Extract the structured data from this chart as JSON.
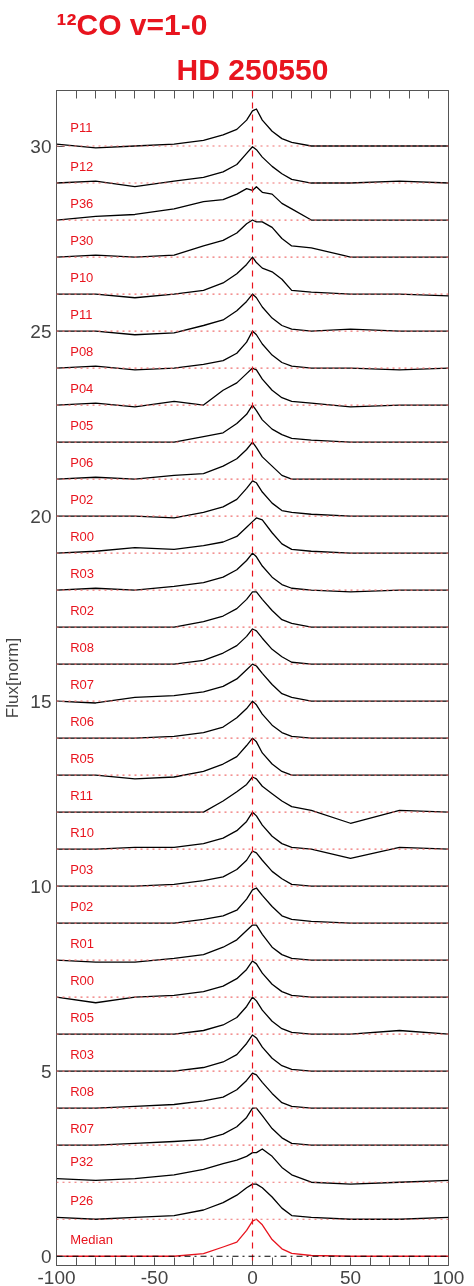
{
  "chart_data": {
    "type": "line",
    "title": "¹²CO v=1-0",
    "subtitle": "HD 250550",
    "ylabel": "Flux[norm]",
    "x": [
      -100,
      -80,
      -60,
      -40,
      -25,
      -15,
      -8,
      -3,
      0,
      2,
      5,
      10,
      15,
      20,
      30,
      50,
      75,
      100
    ],
    "xlim": [
      -100,
      100
    ],
    "ylim": [
      -0.25,
      31.5
    ],
    "xticks": [
      -100,
      {
        "value": -90,
        "label": null
      },
      {
        "value": -80,
        "label": null
      },
      {
        "value": -70,
        "label": null
      },
      {
        "value": -60,
        "label": null
      },
      -50,
      {
        "value": -40,
        "label": null
      },
      {
        "value": -30,
        "label": null
      },
      {
        "value": -20,
        "label": null
      },
      {
        "value": -10,
        "label": null
      },
      0,
      {
        "value": 10,
        "label": null
      },
      {
        "value": 20,
        "label": null
      },
      {
        "value": 30,
        "label": null
      },
      {
        "value": 40,
        "label": null
      },
      50,
      {
        "value": 60,
        "label": null
      },
      {
        "value": 70,
        "label": null
      },
      {
        "value": 80,
        "label": null
      },
      {
        "value": 90,
        "label": null
      },
      100
    ],
    "yticks": [
      0,
      5,
      10,
      15,
      20,
      25,
      30
    ],
    "grid": false,
    "series": [
      {
        "name": "P11",
        "color": "#000000",
        "values": [
          30.05,
          29.95,
          30,
          30.05,
          30.15,
          30.3,
          30.45,
          30.7,
          30.95,
          31.0,
          30.7,
          30.4,
          30.2,
          30.1,
          30.0,
          30.0,
          30.0,
          30.0
        ]
      },
      {
        "name": "P12",
        "color": "#000000",
        "values": [
          29,
          29.05,
          28.9,
          29.05,
          29.15,
          29.3,
          29.5,
          29.8,
          29.98,
          29.9,
          29.7,
          29.45,
          29.25,
          29.1,
          29.0,
          29.0,
          29.05,
          29.0
        ]
      },
      {
        "name": "P36",
        "color": "#000000",
        "values": [
          28,
          28.1,
          28.15,
          28.3,
          28.5,
          28.55,
          28.7,
          28.85,
          28.8,
          28.9,
          28.75,
          28.7,
          28.45,
          28.3,
          28.0,
          28.0,
          28.0,
          28.0
        ]
      },
      {
        "name": "P30",
        "color": "#000000",
        "values": [
          27,
          27.05,
          27,
          27.05,
          27.3,
          27.45,
          27.65,
          27.9,
          28.0,
          27.95,
          27.95,
          27.8,
          27.5,
          27.3,
          27.25,
          27.0,
          27.0,
          27.0
        ]
      },
      {
        "name": "P10",
        "color": "#000000",
        "values": [
          26,
          26,
          25.9,
          26,
          26.1,
          26.3,
          26.55,
          26.8,
          27.0,
          26.85,
          26.7,
          26.6,
          26.4,
          26.1,
          26.05,
          26.0,
          26.0,
          25.95
        ]
      },
      {
        "name": "P11",
        "color": "#000000",
        "values": [
          25,
          25,
          24.9,
          24.95,
          25.15,
          25.3,
          25.55,
          25.8,
          26.0,
          25.9,
          25.65,
          25.35,
          25.15,
          25.05,
          25.0,
          25.05,
          25.0,
          25.0
        ]
      },
      {
        "name": "P08",
        "color": "#000000",
        "values": [
          24,
          24.05,
          23.95,
          24.0,
          24.1,
          24.2,
          24.4,
          24.7,
          25.0,
          24.9,
          24.65,
          24.35,
          24.15,
          24.05,
          24.0,
          24.0,
          23.95,
          24.0
        ]
      },
      {
        "name": "P04",
        "color": "#000000",
        "values": [
          23,
          23.05,
          22.95,
          23.1,
          23.0,
          23.4,
          23.6,
          23.85,
          24.0,
          23.95,
          23.7,
          23.4,
          23.2,
          23.1,
          23.05,
          22.95,
          23.0,
          23.0
        ]
      },
      {
        "name": "P05",
        "color": "#000000",
        "values": [
          22,
          22,
          22,
          22.0,
          22.15,
          22.25,
          22.5,
          22.75,
          23.0,
          22.85,
          22.6,
          22.35,
          22.2,
          22.1,
          22.05,
          22.0,
          22.0,
          22.0
        ]
      },
      {
        "name": "P06",
        "color": "#000000",
        "values": [
          21,
          21.05,
          21.0,
          21.1,
          21.15,
          21.35,
          21.55,
          21.8,
          22.0,
          21.85,
          21.6,
          21.35,
          21.1,
          21.0,
          21.0,
          21.0,
          21.0,
          21.0
        ]
      },
      {
        "name": "P02",
        "color": "#000000",
        "values": [
          20,
          20,
          20,
          19.95,
          20.1,
          20.25,
          20.45,
          20.75,
          20.95,
          20.9,
          20.65,
          20.35,
          20.15,
          20.1,
          20.05,
          20.0,
          20.0,
          20.0
        ]
      },
      {
        "name": "R00",
        "color": "#000000",
        "values": [
          19,
          19.05,
          19.15,
          19.1,
          19.2,
          19.3,
          19.45,
          19.7,
          19.85,
          19.95,
          19.9,
          19.55,
          19.25,
          19.1,
          19.05,
          19.0,
          19.0,
          19.0
        ]
      },
      {
        "name": "R03",
        "color": "#000000",
        "values": [
          18,
          18.05,
          18.0,
          18.1,
          18.2,
          18.35,
          18.55,
          18.8,
          19.0,
          18.9,
          18.65,
          18.35,
          18.15,
          18.05,
          18.0,
          17.95,
          18.0,
          18.0
        ]
      },
      {
        "name": "R02",
        "color": "#000000",
        "values": [
          17,
          17,
          17,
          17.0,
          17.15,
          17.3,
          17.5,
          17.75,
          17.95,
          17.95,
          17.75,
          17.45,
          17.2,
          17.1,
          17.0,
          17.0,
          17.0,
          17.0
        ]
      },
      {
        "name": "R08",
        "color": "#000000",
        "values": [
          16,
          16,
          16,
          16,
          16.1,
          16.3,
          16.5,
          16.75,
          16.95,
          16.9,
          16.7,
          16.4,
          16.2,
          16.05,
          16.0,
          16.0,
          16.0,
          16.0
        ]
      },
      {
        "name": "R07",
        "color": "#000000",
        "values": [
          15,
          14.95,
          15.1,
          15.15,
          15.25,
          15.4,
          15.6,
          15.85,
          16.0,
          15.95,
          15.75,
          15.45,
          15.2,
          15.1,
          15.0,
          15.0,
          15.0,
          15.0
        ]
      },
      {
        "name": "R06",
        "color": "#000000",
        "values": [
          14,
          14,
          14,
          14.05,
          14.15,
          14.3,
          14.55,
          14.8,
          15.0,
          14.9,
          14.65,
          14.35,
          14.15,
          14.05,
          14.0,
          14.0,
          14.0,
          14.0
        ]
      },
      {
        "name": "R05",
        "color": "#000000",
        "values": [
          13,
          13,
          12.9,
          12.95,
          13.1,
          13.3,
          13.5,
          13.8,
          14.0,
          13.9,
          13.6,
          13.3,
          13.1,
          13.0,
          13.0,
          13.0,
          13.0,
          13.0
        ]
      },
      {
        "name": "R11",
        "color": "#000000",
        "values": [
          12,
          12,
          12,
          12,
          12,
          12.3,
          12.55,
          12.75,
          12.95,
          12.9,
          12.7,
          12.5,
          12.3,
          12.15,
          12.05,
          11.7,
          12.05,
          12.0
        ]
      },
      {
        "name": "R10",
        "color": "#000000",
        "values": [
          11,
          11,
          11.05,
          11.05,
          11.15,
          11.3,
          11.5,
          11.75,
          12.0,
          11.9,
          11.65,
          11.35,
          11.15,
          11.05,
          11.0,
          10.75,
          11.05,
          11.0
        ]
      },
      {
        "name": "P03",
        "color": "#000000",
        "values": [
          10,
          10,
          10,
          10.05,
          10.15,
          10.25,
          10.45,
          10.7,
          10.95,
          10.9,
          10.7,
          10.4,
          10.2,
          10.05,
          10.0,
          10.0,
          10.0,
          10.0
        ]
      },
      {
        "name": "P02",
        "color": "#000000",
        "values": [
          9,
          9,
          9,
          9,
          9.1,
          9.2,
          9.35,
          9.65,
          9.9,
          9.95,
          9.75,
          9.45,
          9.2,
          9.1,
          9.05,
          9.0,
          9.0,
          9.0
        ]
      },
      {
        "name": "R01",
        "color": "#000000",
        "values": [
          8,
          7.95,
          7.95,
          8.05,
          8.15,
          8.35,
          8.55,
          8.8,
          8.95,
          8.95,
          8.7,
          8.35,
          8.15,
          8.05,
          8.0,
          8.0,
          8.0,
          8.0
        ]
      },
      {
        "name": "R00",
        "color": "#000000",
        "values": [
          7,
          6.85,
          7.0,
          7.05,
          7.15,
          7.3,
          7.5,
          7.75,
          7.98,
          7.9,
          7.65,
          7.35,
          7.15,
          7.05,
          7.0,
          7.0,
          7.0,
          7.0
        ]
      },
      {
        "name": "R05",
        "color": "#000000",
        "values": [
          6,
          6,
          6,
          6,
          6.1,
          6.25,
          6.45,
          6.75,
          7.0,
          6.9,
          6.65,
          6.35,
          6.15,
          6.05,
          6.0,
          6.0,
          6.1,
          6.0
        ]
      },
      {
        "name": "R03",
        "color": "#000000",
        "values": [
          5,
          5,
          5,
          5.0,
          5.1,
          5.25,
          5.45,
          5.75,
          5.98,
          5.9,
          5.65,
          5.35,
          5.15,
          5.05,
          5.0,
          5.0,
          5.0,
          5.0
        ]
      },
      {
        "name": "R08",
        "color": "#000000",
        "values": [
          4,
          4,
          4.05,
          4.1,
          4.2,
          4.3,
          4.5,
          4.75,
          4.95,
          4.9,
          4.7,
          4.4,
          4.15,
          4.05,
          4.0,
          4.0,
          4.0,
          4.0
        ]
      },
      {
        "name": "R07",
        "color": "#000000",
        "values": [
          3,
          3,
          3.05,
          3.1,
          3.15,
          3.3,
          3.5,
          3.75,
          4.0,
          4.0,
          3.8,
          3.45,
          3.2,
          3.05,
          3.0,
          3.0,
          3.0,
          3.0
        ]
      },
      {
        "name": "P32",
        "color": "#000000",
        "values": [
          2.1,
          2.05,
          2.1,
          2.2,
          2.35,
          2.5,
          2.6,
          2.7,
          2.8,
          2.8,
          2.9,
          2.7,
          2.4,
          2.2,
          2.0,
          1.95,
          2.0,
          2.05
        ]
      },
      {
        "name": "P26",
        "color": "#000000",
        "values": [
          1.05,
          1.0,
          1.05,
          1.1,
          1.25,
          1.45,
          1.65,
          1.85,
          1.95,
          1.95,
          1.85,
          1.6,
          1.3,
          1.1,
          1.05,
          1.0,
          1.0,
          1.05
        ]
      },
      {
        "name": "Median",
        "color": "#e8141e",
        "values": [
          0,
          0,
          0,
          0,
          0.07,
          0.25,
          0.38,
          0.7,
          0.95,
          1.0,
          0.85,
          0.45,
          0.2,
          0.08,
          0.02,
          0,
          0,
          0
        ]
      }
    ],
    "ref_lines": [
      {
        "axis": "x",
        "value": 0,
        "color": "#e8141e",
        "line_style": "dashed"
      },
      {
        "axis": "y",
        "value": 0,
        "color": "#000000",
        "line_style": "dashdot"
      },
      {
        "axis": "y",
        "value": 1,
        "color": "#f07070",
        "line_style": "dotted"
      },
      {
        "axis": "y",
        "value": 2,
        "color": "#f07070",
        "line_style": "dotted"
      },
      {
        "axis": "y",
        "value": 3,
        "color": "#f07070",
        "line_style": "dotted"
      },
      {
        "axis": "y",
        "value": 4,
        "color": "#f07070",
        "line_style": "dotted"
      },
      {
        "axis": "y",
        "value": 5,
        "color": "#f07070",
        "line_style": "dotted"
      },
      {
        "axis": "y",
        "value": 6,
        "color": "#f07070",
        "line_style": "dotted"
      },
      {
        "axis": "y",
        "value": 7,
        "color": "#f07070",
        "line_style": "dotted"
      },
      {
        "axis": "y",
        "value": 8,
        "color": "#f07070",
        "line_style": "dotted"
      },
      {
        "axis": "y",
        "value": 9,
        "color": "#f07070",
        "line_style": "dotted"
      },
      {
        "axis": "y",
        "value": 10,
        "color": "#f07070",
        "line_style": "dotted"
      },
      {
        "axis": "y",
        "value": 11,
        "color": "#f07070",
        "line_style": "dotted"
      },
      {
        "axis": "y",
        "value": 12,
        "color": "#f07070",
        "line_style": "dotted"
      },
      {
        "axis": "y",
        "value": 13,
        "color": "#f07070",
        "line_style": "dotted"
      },
      {
        "axis": "y",
        "value": 14,
        "color": "#f07070",
        "line_style": "dotted"
      },
      {
        "axis": "y",
        "value": 15,
        "color": "#f07070",
        "line_style": "dotted"
      },
      {
        "axis": "y",
        "value": 16,
        "color": "#f07070",
        "line_style": "dotted"
      },
      {
        "axis": "y",
        "value": 17,
        "color": "#f07070",
        "line_style": "dotted"
      },
      {
        "axis": "y",
        "value": 18,
        "color": "#f07070",
        "line_style": "dotted"
      },
      {
        "axis": "y",
        "value": 19,
        "color": "#f07070",
        "line_style": "dotted"
      },
      {
        "axis": "y",
        "value": 20,
        "color": "#f07070",
        "line_style": "dotted"
      },
      {
        "axis": "y",
        "value": 21,
        "color": "#f07070",
        "line_style": "dotted"
      },
      {
        "axis": "y",
        "value": 22,
        "color": "#f07070",
        "line_style": "dotted"
      },
      {
        "axis": "y",
        "value": 23,
        "color": "#f07070",
        "line_style": "dotted"
      },
      {
        "axis": "y",
        "value": 24,
        "color": "#f07070",
        "line_style": "dotted"
      },
      {
        "axis": "y",
        "value": 25,
        "color": "#f07070",
        "line_style": "dotted"
      },
      {
        "axis": "y",
        "value": 26,
        "color": "#f07070",
        "line_style": "dotted"
      },
      {
        "axis": "y",
        "value": 27,
        "color": "#f07070",
        "line_style": "dotted"
      },
      {
        "axis": "y",
        "value": 28,
        "color": "#f07070",
        "line_style": "dotted"
      },
      {
        "axis": "y",
        "value": 29,
        "color": "#f07070",
        "line_style": "dotted"
      },
      {
        "axis": "y",
        "value": 30,
        "color": "#f07070",
        "line_style": "dotted"
      }
    ]
  }
}
